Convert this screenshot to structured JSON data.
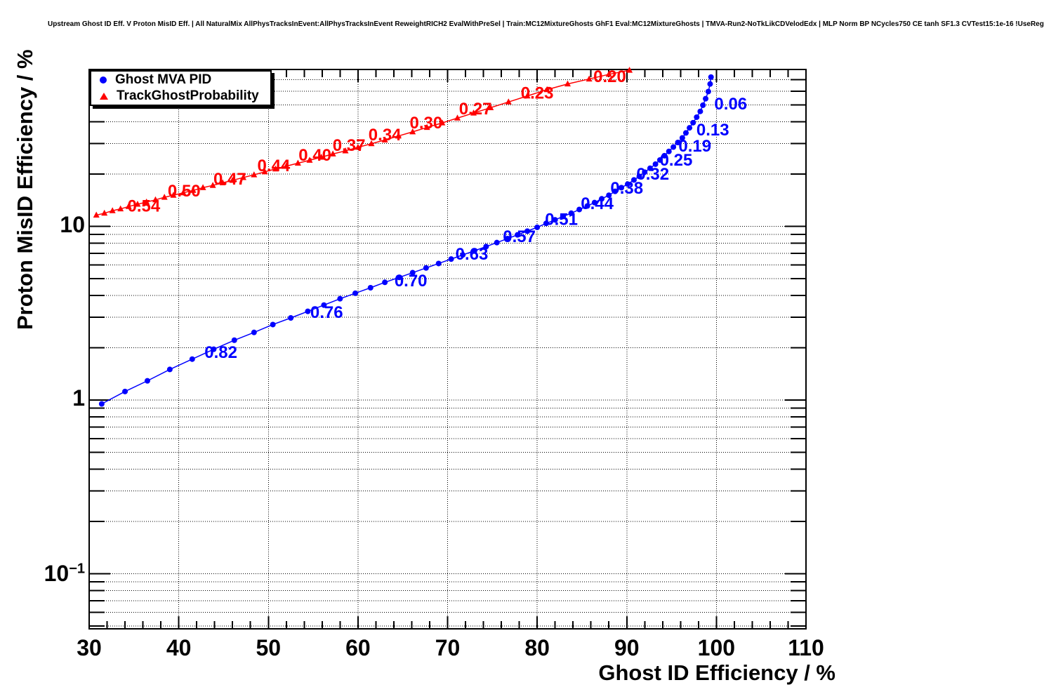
{
  "title": "Upstream Ghost ID Eff. V Proton MisID Eff. | All NaturalMix AllPhysTracksInEvent:AllPhysTracksInEvent ReweightRICH2 EvalWithPreSel | Train:MC12MixtureGhosts GhF1 Eval:MC12MixtureGhosts | TMVA-Run2-NoTkLikCDVelodEdx | MLP Norm BP NCycles750 CE tanh SF1.3 CVTest15:1e-16 !UseReg",
  "colors": {
    "blue": "#0000ff",
    "red": "#ff0000",
    "grid": "#000000",
    "frame": "#000000"
  },
  "axes": {
    "x": {
      "title": "Ghost ID Efficiency / %",
      "min": 30,
      "max": 110,
      "minor_step": 2,
      "major_ticks": [
        30,
        40,
        50,
        60,
        70,
        80,
        90,
        100,
        110
      ],
      "tick_labels": [
        "30",
        "40",
        "50",
        "60",
        "70",
        "80",
        "90",
        "100",
        "110"
      ],
      "gridlines": [
        40,
        50,
        60,
        70,
        80,
        90,
        100
      ]
    },
    "y": {
      "title": "Proton MisID Efficiency / %",
      "scale": "log",
      "min": 0.048,
      "max": 80,
      "major_ticks": [
        0.1,
        1,
        10
      ],
      "labels": {
        "ten": "10",
        "one": "1",
        "tenth_base": "10",
        "tenth_exp": "−1"
      },
      "gridlines": [
        0.05,
        0.06,
        0.07,
        0.08,
        0.09,
        0.1,
        0.2,
        0.3,
        0.4,
        0.5,
        0.6,
        0.7,
        0.8,
        0.9,
        1,
        2,
        3,
        4,
        5,
        6,
        7,
        8,
        9,
        10,
        20,
        30,
        40,
        50,
        60,
        70
      ]
    }
  },
  "legend": {
    "items": [
      {
        "label": "Ghost MVA PID",
        "marker": "circle",
        "color": "#0000ff"
      },
      {
        "label": "TrackGhostProbability",
        "marker": "triangle",
        "color": "#ff0000"
      }
    ]
  },
  "chart_data": {
    "type": "line",
    "title": "Upstream Ghost ID Eff. V Proton MisID Eff.",
    "xlabel": "Ghost ID Efficiency / %",
    "ylabel": "Proton MisID Efficiency / %",
    "xlim": [
      30,
      110
    ],
    "ylim": [
      0.048,
      80
    ],
    "yscale": "log",
    "grid": true,
    "legend_position": "top-left",
    "series": [
      {
        "name": "Ghost MVA PID",
        "color": "#0000ff",
        "marker": "circle",
        "points": [
          [
            31.4,
            0.95
          ],
          [
            34.0,
            1.12
          ],
          [
            36.5,
            1.29
          ],
          [
            39.0,
            1.5
          ],
          [
            41.5,
            1.72
          ],
          [
            43.9,
            1.96
          ],
          [
            46.2,
            2.21
          ],
          [
            48.4,
            2.45
          ],
          [
            50.5,
            2.72
          ],
          [
            52.5,
            2.97
          ],
          [
            54.4,
            3.24
          ],
          [
            56.2,
            3.52
          ],
          [
            58.0,
            3.83
          ],
          [
            59.7,
            4.12
          ],
          [
            61.4,
            4.43
          ],
          [
            63.0,
            4.76
          ],
          [
            64.6,
            5.08
          ],
          [
            66.1,
            5.41
          ],
          [
            67.6,
            5.76
          ],
          [
            69.0,
            6.11
          ],
          [
            70.4,
            6.48
          ],
          [
            71.7,
            6.85
          ],
          [
            73.0,
            7.23
          ],
          [
            74.3,
            7.65
          ],
          [
            75.5,
            8.06
          ],
          [
            76.7,
            8.5
          ],
          [
            77.8,
            8.93
          ],
          [
            78.9,
            9.38
          ],
          [
            80.0,
            9.87
          ],
          [
            81.0,
            10.4
          ],
          [
            82.0,
            10.9
          ],
          [
            82.9,
            11.4
          ],
          [
            83.8,
            11.9
          ],
          [
            84.7,
            12.5
          ],
          [
            85.6,
            13.1
          ],
          [
            86.4,
            13.7
          ],
          [
            87.2,
            14.4
          ],
          [
            88.0,
            15.1
          ],
          [
            88.7,
            15.9
          ],
          [
            89.4,
            16.7
          ],
          [
            90.1,
            17.5
          ],
          [
            90.8,
            18.5
          ],
          [
            91.4,
            19.4
          ],
          [
            92.0,
            20.5
          ],
          [
            92.6,
            21.6
          ],
          [
            93.2,
            22.8
          ],
          [
            93.7,
            24.1
          ],
          [
            94.2,
            25.5
          ],
          [
            94.7,
            27.0
          ],
          [
            95.2,
            28.6
          ],
          [
            95.7,
            30.4
          ],
          [
            96.2,
            32.3
          ],
          [
            96.6,
            34.5
          ],
          [
            97.0,
            36.9
          ],
          [
            97.4,
            39.5
          ],
          [
            97.8,
            42.5
          ],
          [
            98.2,
            45.9
          ],
          [
            98.5,
            49.8
          ],
          [
            98.8,
            54.3
          ],
          [
            99.1,
            59.7
          ],
          [
            99.3,
            66.0
          ],
          [
            99.4,
            72.3
          ]
        ],
        "point_labels": [
          {
            "text": "0.82",
            "x": 44.7,
            "y": 1.88
          },
          {
            "text": "0.76",
            "x": 56.5,
            "y": 3.2
          },
          {
            "text": "0.70",
            "x": 65.9,
            "y": 4.87
          },
          {
            "text": "0.63",
            "x": 72.7,
            "y": 6.92
          },
          {
            "text": "0.57",
            "x": 78.0,
            "y": 8.74
          },
          {
            "text": "0.51",
            "x": 82.7,
            "y": 11.0
          },
          {
            "text": "0.44",
            "x": 86.7,
            "y": 13.5
          },
          {
            "text": "0.38",
            "x": 90.0,
            "y": 16.6
          },
          {
            "text": "0.32",
            "x": 92.9,
            "y": 20.0
          },
          {
            "text": "0.25",
            "x": 95.5,
            "y": 24.1
          },
          {
            "text": "0.19",
            "x": 97.6,
            "y": 29.0
          },
          {
            "text": "0.13",
            "x": 99.6,
            "y": 36.0
          },
          {
            "text": "0.06",
            "x": 101.6,
            "y": 50.8
          }
        ]
      },
      {
        "name": "TrackGhostProbability",
        "color": "#ff0000",
        "marker": "triangle",
        "points": [
          [
            30.8,
            11.6
          ],
          [
            31.7,
            11.9
          ],
          [
            32.6,
            12.3
          ],
          [
            33.5,
            12.6
          ],
          [
            34.4,
            13.0
          ],
          [
            35.4,
            13.4
          ],
          [
            36.4,
            13.8
          ],
          [
            37.4,
            14.2
          ],
          [
            38.4,
            14.7
          ],
          [
            39.4,
            15.1
          ],
          [
            40.5,
            15.6
          ],
          [
            41.6,
            16.1
          ],
          [
            42.7,
            16.7
          ],
          [
            43.8,
            17.2
          ],
          [
            44.9,
            17.8
          ],
          [
            46.0,
            18.4
          ],
          [
            47.2,
            19.1
          ],
          [
            48.4,
            19.8
          ],
          [
            49.6,
            20.6
          ],
          [
            50.8,
            21.4
          ],
          [
            52.0,
            22.2
          ],
          [
            53.3,
            23.1
          ],
          [
            54.6,
            24.0
          ],
          [
            55.9,
            25.0
          ],
          [
            57.2,
            26.1
          ],
          [
            58.6,
            27.2
          ],
          [
            60.0,
            28.5
          ],
          [
            61.5,
            29.9
          ],
          [
            63.0,
            31.4
          ],
          [
            64.5,
            33.1
          ],
          [
            66.1,
            35.0
          ],
          [
            67.7,
            37.1
          ],
          [
            69.4,
            39.4
          ],
          [
            71.1,
            42.0
          ],
          [
            72.9,
            44.9
          ],
          [
            74.8,
            48.2
          ],
          [
            76.8,
            52.0
          ],
          [
            78.9,
            56.3
          ],
          [
            81.1,
            61.2
          ],
          [
            83.4,
            66.0
          ],
          [
            85.8,
            70.5
          ],
          [
            88.0,
            75.0
          ],
          [
            90.3,
            79.2
          ]
        ],
        "point_labels": [
          {
            "text": "0.54",
            "x": 36.1,
            "y": 13.1
          },
          {
            "text": "0.50",
            "x": 40.6,
            "y": 16.0
          },
          {
            "text": "0.47",
            "x": 45.7,
            "y": 18.7
          },
          {
            "text": "0.44",
            "x": 50.6,
            "y": 22.4
          },
          {
            "text": "0.40",
            "x": 55.2,
            "y": 25.7
          },
          {
            "text": "0.37",
            "x": 59.0,
            "y": 29.3
          },
          {
            "text": "0.34",
            "x": 63.0,
            "y": 33.7
          },
          {
            "text": "0.30",
            "x": 67.6,
            "y": 39.5
          },
          {
            "text": "0.27",
            "x": 73.1,
            "y": 47.4
          },
          {
            "text": "0.23",
            "x": 80.0,
            "y": 58.6
          },
          {
            "text": "0.20",
            "x": 88.1,
            "y": 72.9
          }
        ]
      }
    ]
  }
}
